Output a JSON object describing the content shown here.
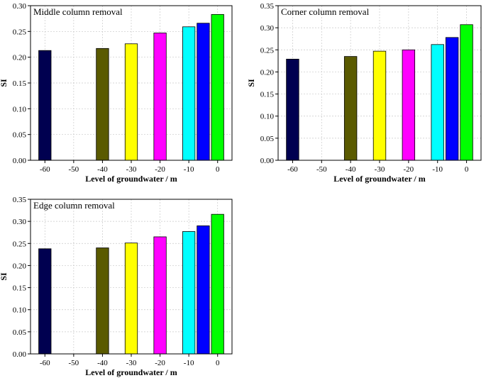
{
  "chart_data": [
    {
      "type": "bar",
      "title": "Middle column removal",
      "xlabel": "Level of groundwater / m",
      "ylabel": "SI",
      "ylim": [
        0,
        0.3
      ],
      "yticks": [
        "0.00",
        "0.05",
        "0.10",
        "0.15",
        "0.20",
        "0.25",
        "0.30"
      ],
      "xticks": [
        "-60",
        "-50",
        "-40",
        "-30",
        "-20",
        "-10",
        "0"
      ],
      "xlim": [
        -65,
        5
      ],
      "bars": [
        {
          "x": -60,
          "value": 0.213,
          "color": "#000050"
        },
        {
          "x": -40,
          "value": 0.217,
          "color": "#5a5a00"
        },
        {
          "x": -30,
          "value": 0.226,
          "color": "#ffff00"
        },
        {
          "x": -20,
          "value": 0.247,
          "color": "#ff00ff"
        },
        {
          "x": -10,
          "value": 0.259,
          "color": "#00ffff"
        },
        {
          "x": -5,
          "value": 0.266,
          "color": "#0000ff"
        },
        {
          "x": 0,
          "value": 0.283,
          "color": "#00ff00"
        }
      ]
    },
    {
      "type": "bar",
      "title": "Corner column removal",
      "xlabel": "Level of groundwater / m",
      "ylabel": "SI",
      "ylim": [
        0,
        0.35
      ],
      "yticks": [
        "0.00",
        "0.05",
        "0.10",
        "0.15",
        "0.20",
        "0.25",
        "0.30",
        "0.35"
      ],
      "xticks": [
        "-60",
        "-50",
        "-40",
        "-30",
        "-20",
        "-10",
        "0"
      ],
      "xlim": [
        -65,
        5
      ],
      "bars": [
        {
          "x": -60,
          "value": 0.229,
          "color": "#000050"
        },
        {
          "x": -40,
          "value": 0.235,
          "color": "#5a5a00"
        },
        {
          "x": -30,
          "value": 0.247,
          "color": "#ffff00"
        },
        {
          "x": -20,
          "value": 0.25,
          "color": "#ff00ff"
        },
        {
          "x": -10,
          "value": 0.262,
          "color": "#00ffff"
        },
        {
          "x": -5,
          "value": 0.278,
          "color": "#0000ff"
        },
        {
          "x": 0,
          "value": 0.307,
          "color": "#00ff00"
        }
      ]
    },
    {
      "type": "bar",
      "title": "Edge column removal",
      "xlabel": "Level of groundwater / m",
      "ylabel": "SI",
      "ylim": [
        0,
        0.35
      ],
      "yticks": [
        "0.00",
        "0.05",
        "0.10",
        "0.15",
        "0.20",
        "0.25",
        "0.30",
        "0.35"
      ],
      "xticks": [
        "-60",
        "-50",
        "-40",
        "-30",
        "-20",
        "-10",
        "0"
      ],
      "xlim": [
        -65,
        5
      ],
      "bars": [
        {
          "x": -60,
          "value": 0.238,
          "color": "#000050"
        },
        {
          "x": -40,
          "value": 0.24,
          "color": "#5a5a00"
        },
        {
          "x": -30,
          "value": 0.251,
          "color": "#ffff00"
        },
        {
          "x": -20,
          "value": 0.265,
          "color": "#ff00ff"
        },
        {
          "x": -10,
          "value": 0.277,
          "color": "#00ffff"
        },
        {
          "x": -5,
          "value": 0.29,
          "color": "#0000ff"
        },
        {
          "x": 0,
          "value": 0.316,
          "color": "#00ff00"
        }
      ]
    }
  ]
}
